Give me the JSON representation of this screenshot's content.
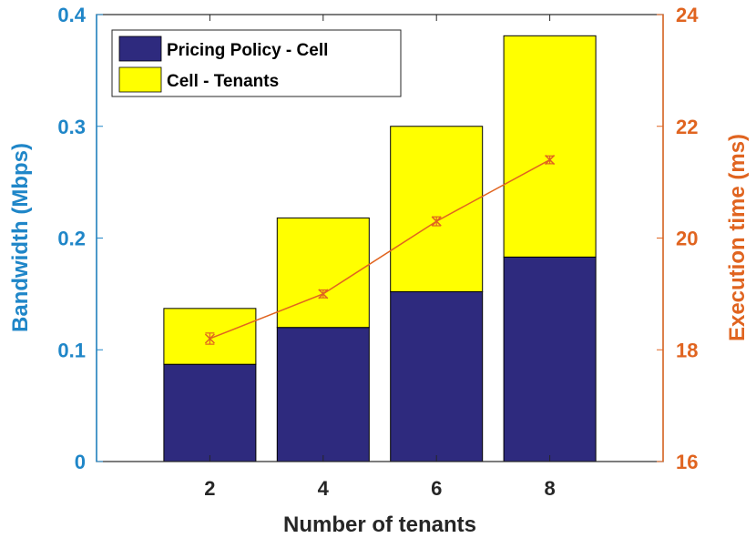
{
  "chart_data": {
    "type": "bar",
    "stacked": true,
    "categories": [
      "2",
      "4",
      "6",
      "8"
    ],
    "xlabel": "Number of tenants",
    "ylabel_left": "Bandwidth (Mbps)",
    "ylabel_right": "Execution time (ms)",
    "ylim_left": [
      0,
      0.4
    ],
    "ylim_right": [
      16,
      24
    ],
    "yticks_left": [
      "0",
      "0.1",
      "0.2",
      "0.3",
      "0.4"
    ],
    "yticks_right": [
      "16",
      "18",
      "20",
      "22",
      "24"
    ],
    "xticks": [
      "2",
      "4",
      "6",
      "8"
    ],
    "legend_position": "top-left",
    "series": [
      {
        "name": "Pricing Policy - Cell",
        "color": "#2e2a7e",
        "values": [
          0.087,
          0.12,
          0.152,
          0.183
        ]
      },
      {
        "name": "Cell - Tenants",
        "color": "#ffff00",
        "values": [
          0.05,
          0.098,
          0.148,
          0.198
        ]
      }
    ],
    "line_series": {
      "axis": "right",
      "color": "#e06420",
      "marker": "x",
      "values": [
        18.2,
        19.0,
        20.3,
        21.4
      ],
      "error": [
        0.1,
        0.07,
        0.08,
        0.07
      ]
    }
  }
}
